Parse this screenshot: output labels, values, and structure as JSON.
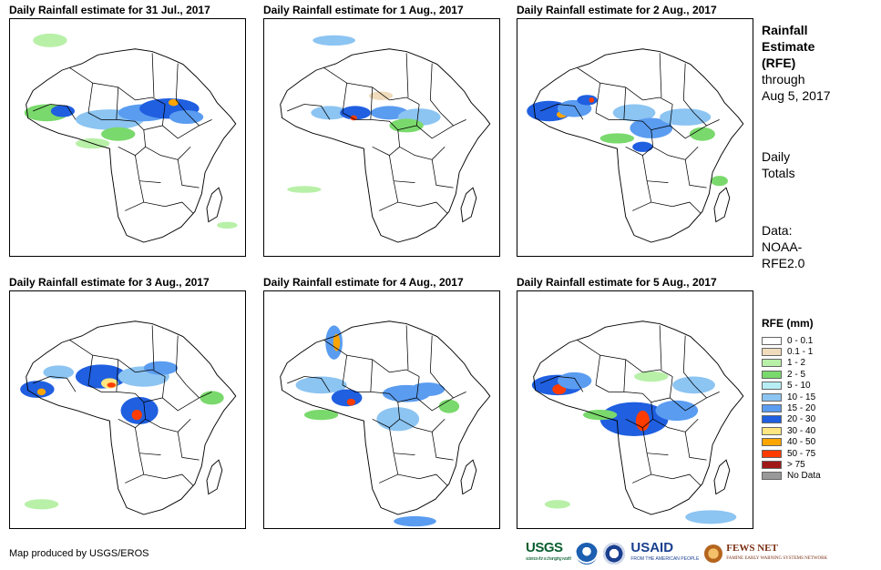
{
  "panels": [
    {
      "title": "Daily Rainfall estimate for 31 Jul., 2017"
    },
    {
      "title": "Daily Rainfall estimate for 1 Aug., 2017"
    },
    {
      "title": "Daily Rainfall estimate for 2 Aug., 2017"
    },
    {
      "title": "Daily Rainfall estimate for 3 Aug., 2017"
    },
    {
      "title": "Daily Rainfall estimate for 4 Aug., 2017"
    },
    {
      "title": "Daily Rainfall estimate for 5 Aug., 2017"
    }
  ],
  "side": {
    "heading_line1": "Rainfall",
    "heading_line2": "Estimate",
    "heading_line3": "(RFE)",
    "through_line1": "through",
    "through_line2": "Aug 5, 2017",
    "daily_line1": "Daily",
    "daily_line2": "Totals",
    "data_line1": "Data:",
    "data_line2": "NOAA-",
    "data_line3": "RFE2.0"
  },
  "legend": {
    "title": "RFE (mm)",
    "items": [
      {
        "label": "0 - 0.1",
        "color": "#ffffff"
      },
      {
        "label": "0.1 - 1",
        "color": "#f0dcbc"
      },
      {
        "label": "1 - 2",
        "color": "#b8f0a8"
      },
      {
        "label": "2 - 5",
        "color": "#7ad96c"
      },
      {
        "label": "5 - 10",
        "color": "#b6eef4"
      },
      {
        "label": "10 - 15",
        "color": "#8cc4f2"
      },
      {
        "label": "15 - 20",
        "color": "#5a9cf0"
      },
      {
        "label": "20 - 30",
        "color": "#1f5fe0"
      },
      {
        "label": "30 - 40",
        "color": "#ffe680"
      },
      {
        "label": "40 - 50",
        "color": "#ffa500"
      },
      {
        "label": "50 - 75",
        "color": "#ff3c00"
      },
      {
        "label": "> 75",
        "color": "#a01818"
      },
      {
        "label": "No Data",
        "color": "#999999"
      }
    ]
  },
  "credit": "Map produced by USGS/EROS",
  "logos": {
    "usgs": "USGS",
    "usgs_tagline": "science for a changing world",
    "usaid": "USAID",
    "usaid_tagline": "FROM THE AMERICAN PEOPLE",
    "fews": "FEWS NET",
    "fews_tagline": "FAMINE EARLY WARNING SYSTEMS NETWORK"
  }
}
